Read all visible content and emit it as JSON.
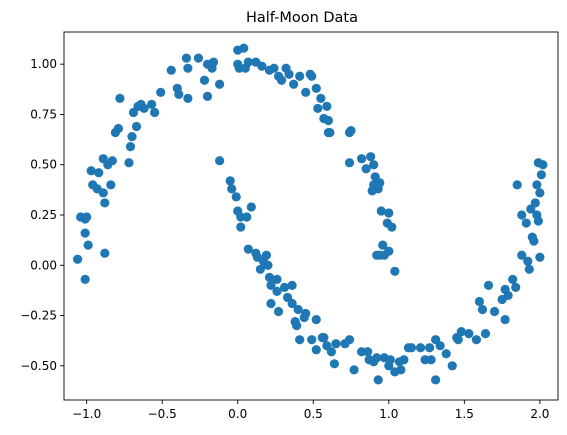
{
  "chart_data": {
    "type": "scatter",
    "title": "Half-Moon Data",
    "xlabel": "",
    "ylabel": "",
    "xlim": [
      -1.15,
      2.12
    ],
    "ylim": [
      -0.67,
      1.16
    ],
    "xticks": [
      -1.0,
      -0.5,
      0.0,
      0.5,
      1.0,
      1.5,
      2.0
    ],
    "xtick_labels": [
      "−1.0",
      "−0.5",
      "0.0",
      "0.5",
      "1.0",
      "1.5",
      "2.0"
    ],
    "yticks": [
      -0.5,
      -0.25,
      0.0,
      0.25,
      0.5,
      0.75,
      1.0
    ],
    "ytick_labels": [
      "−0.50",
      "−0.25",
      "0.00",
      "0.25",
      "0.50",
      "0.75",
      "1.00"
    ],
    "grid": false,
    "marker_color": "#1f77b4",
    "series": [
      {
        "points": [
          [
            -1.0,
            0.24
          ],
          [
            -1.04,
            0.24
          ],
          [
            -1.01,
            0.23
          ],
          [
            -1.01,
            0.16
          ],
          [
            -0.99,
            0.1
          ],
          [
            -1.06,
            0.03
          ],
          [
            -1.01,
            -0.07
          ],
          [
            -0.96,
            0.4
          ],
          [
            -0.97,
            0.47
          ],
          [
            -0.92,
            0.46
          ],
          [
            -0.93,
            0.38
          ],
          [
            -0.89,
            0.36
          ],
          [
            -0.88,
            0.31
          ],
          [
            -0.84,
            0.4
          ],
          [
            -0.88,
            0.06
          ],
          [
            -0.89,
            0.53
          ],
          [
            -0.86,
            0.5
          ],
          [
            -0.83,
            0.52
          ],
          [
            -0.81,
            0.66
          ],
          [
            -0.79,
            0.68
          ],
          [
            -0.78,
            0.83
          ],
          [
            -0.72,
            0.51
          ],
          [
            -0.71,
            0.59
          ],
          [
            -0.7,
            0.64
          ],
          [
            -0.66,
            0.79
          ],
          [
            -0.64,
            0.8
          ],
          [
            -0.62,
            0.78
          ],
          [
            -0.69,
            0.76
          ],
          [
            -0.67,
            0.69
          ],
          [
            -0.57,
            0.8
          ],
          [
            -0.55,
            0.76
          ],
          [
            -0.51,
            0.86
          ],
          [
            -0.44,
            0.97
          ],
          [
            -0.4,
            0.88
          ],
          [
            -0.39,
            0.85
          ],
          [
            -0.33,
            0.98
          ],
          [
            -0.34,
            1.03
          ],
          [
            -0.33,
            0.83
          ],
          [
            -0.26,
            1.03
          ],
          [
            -0.22,
            0.92
          ],
          [
            -0.2,
            0.84
          ],
          [
            -0.2,
            1.0
          ],
          [
            -0.17,
            0.98
          ],
          [
            -0.16,
            1.01
          ],
          [
            -0.12,
            0.9
          ],
          [
            0.0,
            1.07
          ],
          [
            0.04,
            1.08
          ],
          [
            0.0,
            1.0
          ],
          [
            0.01,
            0.98
          ],
          [
            0.05,
            0.98
          ],
          [
            0.07,
            1.01
          ],
          [
            0.12,
            1.01
          ],
          [
            0.16,
            0.99
          ],
          [
            0.21,
            0.97
          ],
          [
            0.24,
            0.98
          ],
          [
            0.27,
            0.94
          ],
          [
            0.29,
            0.92
          ],
          [
            0.32,
            0.98
          ],
          [
            0.34,
            0.95
          ],
          [
            0.37,
            0.9
          ],
          [
            0.41,
            0.94
          ],
          [
            0.45,
            0.86
          ],
          [
            0.48,
            0.95
          ],
          [
            0.49,
            0.94
          ],
          [
            0.52,
            0.88
          ],
          [
            0.53,
            0.78
          ],
          [
            0.55,
            0.83
          ],
          [
            0.57,
            0.73
          ],
          [
            0.59,
            0.79
          ],
          [
            0.6,
            0.66
          ],
          [
            0.6,
            0.72
          ],
          [
            0.61,
            0.66
          ],
          [
            0.74,
            0.66
          ],
          [
            0.75,
            0.67
          ],
          [
            0.74,
            0.51
          ],
          [
            0.82,
            0.53
          ],
          [
            0.85,
            0.48
          ],
          [
            0.88,
            0.54
          ],
          [
            0.9,
            0.5
          ],
          [
            0.91,
            0.44
          ],
          [
            0.9,
            0.4
          ],
          [
            0.93,
            0.38
          ],
          [
            0.94,
            0.41
          ],
          [
            0.89,
            0.37
          ],
          [
            0.95,
            0.27
          ],
          [
            1.0,
            0.26
          ],
          [
            0.99,
            0.21
          ],
          [
            1.02,
            0.19
          ],
          [
            0.96,
            0.1
          ],
          [
            0.94,
            0.05
          ],
          [
            0.97,
            0.05
          ],
          [
            1.0,
            0.07
          ],
          [
            1.04,
            -0.03
          ],
          [
            0.92,
            0.05
          ]
        ]
      },
      {
        "points": [
          [
            -0.12,
            0.52
          ],
          [
            -0.05,
            0.42
          ],
          [
            -0.04,
            0.38
          ],
          [
            -0.01,
            0.34
          ],
          [
            0.0,
            0.27
          ],
          [
            0.02,
            0.24
          ],
          [
            0.06,
            0.24
          ],
          [
            0.09,
            0.29
          ],
          [
            0.02,
            0.19
          ],
          [
            0.07,
            0.08
          ],
          [
            0.12,
            0.06
          ],
          [
            0.13,
            0.04
          ],
          [
            0.17,
            0.02
          ],
          [
            0.15,
            -0.02
          ],
          [
            0.19,
            0.05
          ],
          [
            0.2,
            0.0
          ],
          [
            0.21,
            -0.06
          ],
          [
            0.22,
            -0.1
          ],
          [
            0.22,
            -0.19
          ],
          [
            0.26,
            -0.07
          ],
          [
            0.26,
            -0.13
          ],
          [
            0.27,
            -0.23
          ],
          [
            0.31,
            -0.11
          ],
          [
            0.33,
            -0.16
          ],
          [
            0.36,
            -0.1
          ],
          [
            0.36,
            -0.19
          ],
          [
            0.4,
            -0.22
          ],
          [
            0.38,
            -0.28
          ],
          [
            0.39,
            -0.3
          ],
          [
            0.41,
            -0.37
          ],
          [
            0.44,
            -0.26
          ],
          [
            0.45,
            -0.24
          ],
          [
            0.49,
            -0.37
          ],
          [
            0.52,
            -0.27
          ],
          [
            0.52,
            -0.42
          ],
          [
            0.57,
            -0.36
          ],
          [
            0.56,
            -0.36
          ],
          [
            0.59,
            -0.4
          ],
          [
            0.62,
            -0.43
          ],
          [
            0.64,
            -0.49
          ],
          [
            0.65,
            -0.39
          ],
          [
            0.71,
            -0.39
          ],
          [
            0.74,
            -0.37
          ],
          [
            0.77,
            -0.52
          ],
          [
            0.82,
            -0.43
          ],
          [
            0.86,
            -0.43
          ],
          [
            0.87,
            -0.47
          ],
          [
            0.9,
            -0.48
          ],
          [
            0.92,
            -0.46
          ],
          [
            0.93,
            -0.57
          ],
          [
            0.97,
            -0.46
          ],
          [
            1.0,
            -0.5
          ],
          [
            1.01,
            -0.47
          ],
          [
            1.04,
            -0.53
          ],
          [
            1.07,
            -0.48
          ],
          [
            1.08,
            -0.52
          ],
          [
            1.1,
            -0.47
          ],
          [
            1.13,
            -0.41
          ],
          [
            1.15,
            -0.41
          ],
          [
            1.21,
            -0.41
          ],
          [
            1.24,
            -0.47
          ],
          [
            1.27,
            -0.41
          ],
          [
            1.28,
            -0.47
          ],
          [
            1.31,
            -0.57
          ],
          [
            1.31,
            -0.37
          ],
          [
            1.34,
            -0.4
          ],
          [
            1.38,
            -0.44
          ],
          [
            1.42,
            -0.5
          ],
          [
            1.45,
            -0.36
          ],
          [
            1.46,
            -0.37
          ],
          [
            1.48,
            -0.33
          ],
          [
            1.53,
            -0.34
          ],
          [
            1.58,
            -0.37
          ],
          [
            1.6,
            -0.18
          ],
          [
            1.62,
            -0.22
          ],
          [
            1.64,
            -0.34
          ],
          [
            1.66,
            -0.1
          ],
          [
            1.7,
            -0.23
          ],
          [
            1.75,
            -0.17
          ],
          [
            1.77,
            -0.27
          ],
          [
            1.77,
            -0.12
          ],
          [
            1.79,
            -0.15
          ],
          [
            1.82,
            -0.07
          ],
          [
            1.84,
            -0.11
          ],
          [
            1.85,
            0.4
          ],
          [
            1.88,
            0.25
          ],
          [
            1.88,
            0.05
          ],
          [
            1.91,
            0.21
          ],
          [
            1.92,
            0.02
          ],
          [
            1.93,
            -0.02
          ],
          [
            1.94,
            0.28
          ],
          [
            1.95,
            0.14
          ],
          [
            1.96,
            0.12
          ],
          [
            1.97,
            0.31
          ],
          [
            1.98,
            0.25
          ],
          [
            1.99,
            0.22
          ],
          [
            1.98,
            0.4
          ],
          [
            2.0,
            0.36
          ],
          [
            2.01,
            0.45
          ],
          [
            1.99,
            0.51
          ],
          [
            2.02,
            0.5
          ],
          [
            2.0,
            0.04
          ]
        ]
      }
    ]
  }
}
